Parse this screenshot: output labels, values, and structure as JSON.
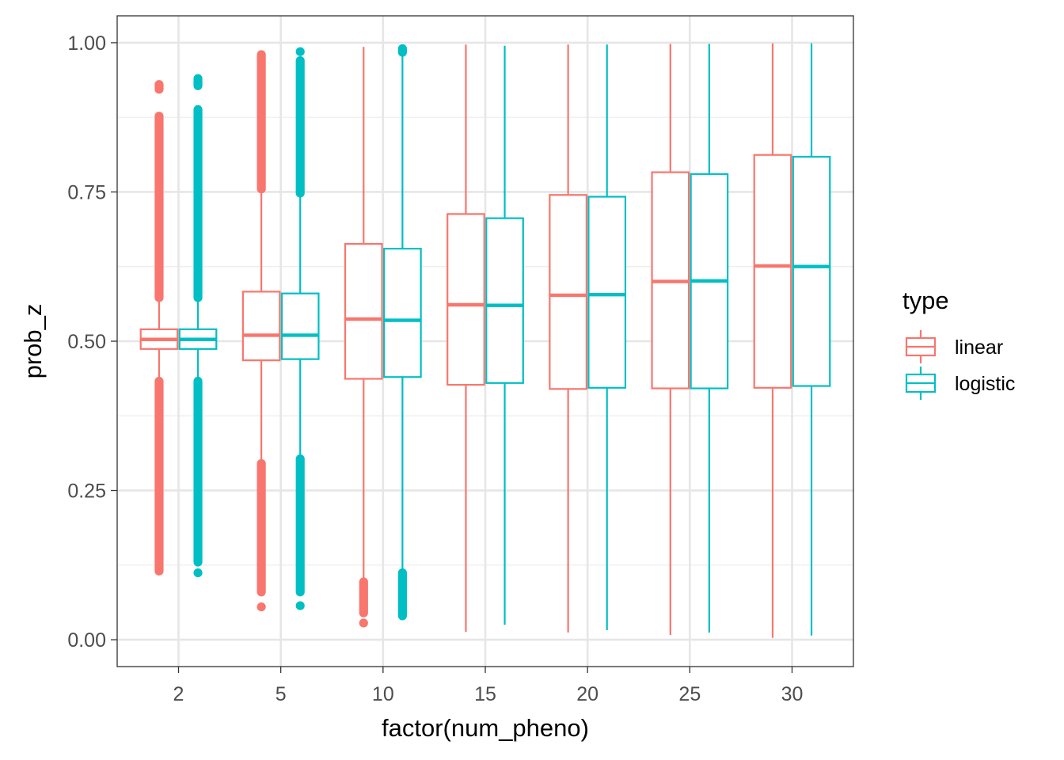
{
  "chart_data": {
    "type": "boxplot",
    "xlabel": "factor(num_pheno)",
    "ylabel": "prob_z",
    "categories": [
      "2",
      "5",
      "10",
      "15",
      "20",
      "25",
      "30"
    ],
    "ylim": [
      -0.045,
      1.045
    ],
    "yticks": [
      0.0,
      0.25,
      0.5,
      0.75,
      1.0
    ],
    "ytick_labels": [
      "0.00",
      "0.25",
      "0.50",
      "0.75",
      "1.00"
    ],
    "grid": true,
    "legend": {
      "title": "type",
      "position": "right",
      "entries": [
        "linear",
        "logistic"
      ]
    },
    "series": [
      {
        "name": "linear",
        "color": "#F8766D",
        "boxes": [
          {
            "whisker_low": 0.435,
            "q1": 0.487,
            "median": 0.503,
            "q3": 0.52,
            "whisker_high": 0.57,
            "outliers": [
              [
                0.115,
                0.433
              ],
              [
                0.573,
                0.877
              ],
              [
                0.922,
                0.93
              ]
            ]
          },
          {
            "whisker_low": 0.297,
            "q1": 0.468,
            "median": 0.51,
            "q3": 0.583,
            "whisker_high": 0.752,
            "outliers": [
              [
                0.08,
                0.295
              ],
              [
                0.055,
                0.055
              ],
              [
                0.755,
                0.98
              ]
            ]
          },
          {
            "whisker_low": 0.1,
            "q1": 0.437,
            "median": 0.537,
            "q3": 0.663,
            "whisker_high": 0.993,
            "outliers": [
              [
                0.045,
                0.097
              ],
              [
                0.028,
                0.028
              ]
            ]
          },
          {
            "whisker_low": 0.013,
            "q1": 0.427,
            "median": 0.561,
            "q3": 0.713,
            "whisker_high": 0.997,
            "outliers": []
          },
          {
            "whisker_low": 0.012,
            "q1": 0.42,
            "median": 0.577,
            "q3": 0.745,
            "whisker_high": 0.997,
            "outliers": []
          },
          {
            "whisker_low": 0.008,
            "q1": 0.421,
            "median": 0.6,
            "q3": 0.783,
            "whisker_high": 0.998,
            "outliers": []
          },
          {
            "whisker_low": 0.003,
            "q1": 0.422,
            "median": 0.626,
            "q3": 0.812,
            "whisker_high": 0.999,
            "outliers": []
          }
        ]
      },
      {
        "name": "logistic",
        "color": "#00BFC4",
        "boxes": [
          {
            "whisker_low": 0.435,
            "q1": 0.487,
            "median": 0.503,
            "q3": 0.52,
            "whisker_high": 0.57,
            "outliers": [
              [
                0.13,
                0.433
              ],
              [
                0.112,
                0.112
              ],
              [
                0.573,
                0.888
              ],
              [
                0.928,
                0.94
              ]
            ]
          },
          {
            "whisker_low": 0.305,
            "q1": 0.47,
            "median": 0.51,
            "q3": 0.58,
            "whisker_high": 0.745,
            "outliers": [
              [
                0.08,
                0.303
              ],
              [
                0.057,
                0.057
              ],
              [
                0.748,
                0.97
              ],
              [
                0.985,
                0.985
              ]
            ]
          },
          {
            "whisker_low": 0.115,
            "q1": 0.44,
            "median": 0.535,
            "q3": 0.655,
            "whisker_high": 0.98,
            "outliers": [
              [
                0.04,
                0.112
              ],
              [
                0.984,
                0.99
              ]
            ]
          },
          {
            "whisker_low": 0.025,
            "q1": 0.43,
            "median": 0.56,
            "q3": 0.706,
            "whisker_high": 0.995,
            "outliers": []
          },
          {
            "whisker_low": 0.016,
            "q1": 0.422,
            "median": 0.578,
            "q3": 0.742,
            "whisker_high": 0.997,
            "outliers": []
          },
          {
            "whisker_low": 0.012,
            "q1": 0.421,
            "median": 0.601,
            "q3": 0.78,
            "whisker_high": 0.998,
            "outliers": []
          },
          {
            "whisker_low": 0.007,
            "q1": 0.425,
            "median": 0.625,
            "q3": 0.809,
            "whisker_high": 0.999,
            "outliers": []
          }
        ]
      }
    ]
  }
}
